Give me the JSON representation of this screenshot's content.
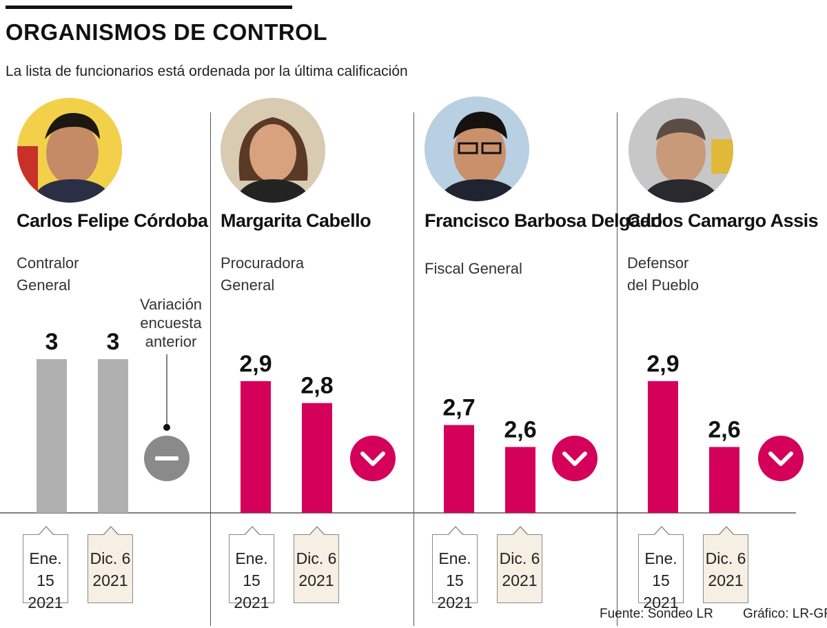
{
  "header": {
    "title": "ORGANISMOS DE CONTROL",
    "subtitle": "La lista de funcionarios está ordenada por la última calificación"
  },
  "variation_label": "Variación\nencuesta\nanterior",
  "colors": {
    "neutral": "#b0b0b0",
    "decline": "#d4005a",
    "neutral_indicator": "#8a8a8a",
    "text": "#111111",
    "date_box_alt": "#f6efe4"
  },
  "officials": [
    {
      "name": "Carlos Felipe\nCórdoba",
      "role": "Contralor\nGeneral",
      "dates": [
        "Ene. 15\n2021",
        "Dic. 6\n2021"
      ],
      "photo_icon": "portrait-icon"
    },
    {
      "name": "Margarita\nCabello",
      "role": "Procuradora\nGeneral",
      "dates": [
        "Ene. 15\n2021",
        "Dic. 6\n2021"
      ],
      "photo_icon": "portrait-icon"
    },
    {
      "name": "Francisco Barbosa\nDelgado",
      "role": "Fiscal General",
      "dates": [
        "Ene. 15\n2021",
        "Dic. 6\n2021"
      ],
      "photo_icon": "portrait-icon"
    },
    {
      "name": "Carlos\nCamargo Assis",
      "role": "Defensor\ndel Pueblo",
      "dates": [
        "Ene. 15\n2021",
        "Dic. 6\n2021"
      ],
      "photo_icon": "portrait-icon"
    }
  ],
  "chart_data": {
    "type": "bar",
    "title": "ORGANISMOS DE CONTROL",
    "subtitle": "La lista de funcionarios está ordenada por la última calificación",
    "categories": [
      "Carlos Felipe Córdoba",
      "Margarita Cabello",
      "Francisco Barbosa Delgado",
      "Carlos Camargo Assis"
    ],
    "series": [
      {
        "name": "Ene. 15 2021",
        "values": [
          3,
          2.9,
          2.7,
          2.9
        ],
        "labels": [
          "3",
          "2,9",
          "2,7",
          "2,9"
        ]
      },
      {
        "name": "Dic. 6 2021",
        "values": [
          3,
          2.8,
          2.6,
          2.6
        ],
        "labels": [
          "3",
          "2,8",
          "2,6",
          "2,6"
        ]
      }
    ],
    "variation": [
      "equal",
      "down",
      "down",
      "down"
    ],
    "ylim": [
      2.3,
      3.0
    ],
    "grid": false,
    "legend": "none",
    "xlabel": "",
    "ylabel": ""
  },
  "footer": {
    "source": "Fuente: Sondeo LR",
    "credit": "Gráfico: LR-GR"
  }
}
